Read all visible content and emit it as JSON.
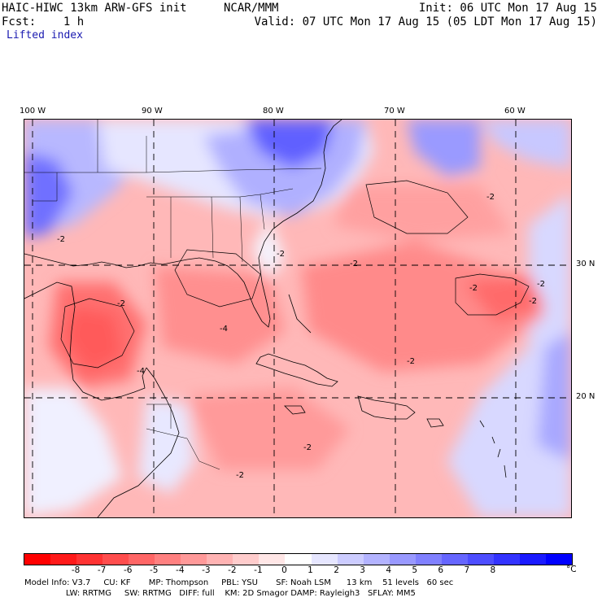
{
  "header": {
    "model_title": "HAIC-HIWC 13km ARW-GFS init",
    "org": "NCAR/MMM",
    "init": "Init: 06 UTC Mon 17 Aug 15",
    "fcst": "Fcst:    1 h",
    "valid": "Valid: 07 UTC Mon 17 Aug 15 (05 LDT Mon 17 Aug 15)",
    "field": "Lifted index"
  },
  "map": {
    "lon_labels": [
      "100 W",
      "90 W",
      "80 W",
      "70 W",
      "60 W"
    ],
    "lat_labels": [
      "30 N",
      "20 N"
    ],
    "contour_labels": [
      "-2",
      "-2",
      "-2",
      "-2",
      "-2",
      "-4",
      "-2",
      "-2",
      "-2",
      "-4",
      "-2",
      "-2",
      "-2"
    ]
  },
  "colorbar": {
    "unit": "°C",
    "ticks": [
      "-8",
      "-7",
      "-6",
      "-5",
      "-4",
      "-3",
      "-2",
      "-1",
      "0",
      "1",
      "2",
      "3",
      "4",
      "5",
      "6",
      "7",
      "8"
    ],
    "colors": [
      "#ff0000",
      "#ff1a1a",
      "#ff3333",
      "#ff4d4d",
      "#ff6666",
      "#ff8080",
      "#ff9999",
      "#ffb3b3",
      "#ffcccc",
      "#ffe6e6",
      "#ffffff",
      "#e6e6ff",
      "#ccccff",
      "#b3b3ff",
      "#9999ff",
      "#8080ff",
      "#6666ff",
      "#4d4dff",
      "#3333ff",
      "#1a1aff",
      "#0000ff"
    ]
  },
  "footer": {
    "line1": "Model Info: V3.7     CU: KF       MP: Thompson     PBL: YSU       SF: Noah LSM      13 km    51 levels   60 sec",
    "line2": "                LW: RRTMG     SW: RRTMG   DIFF: full    KM: 2D Smagor DAMP: Rayleigh3   SFLAY: MM5"
  }
}
